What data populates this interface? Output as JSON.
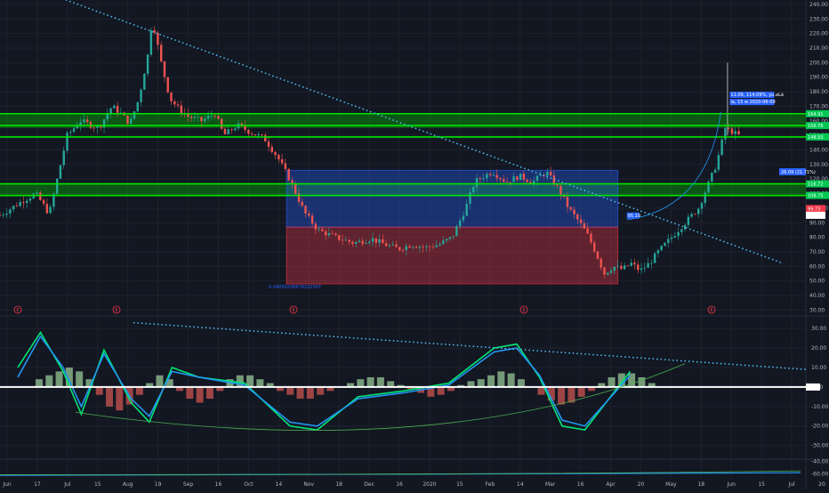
{
  "chart_data": [
    {
      "type": "candlestick",
      "panel": "price",
      "x_ticks": [
        "Jun",
        "17",
        "Jul",
        "15",
        "Aug",
        "19",
        "Sep",
        "16",
        "Oct",
        "14",
        "Nov",
        "18",
        "Dec",
        "16",
        "2020",
        "15",
        "Feb",
        "14",
        "Mar",
        "16",
        "Apr",
        "20",
        "May",
        "18",
        "Jun",
        "15",
        "Jul",
        "20"
      ],
      "y_ticks": [
        240,
        230,
        220,
        210,
        200,
        190,
        180,
        170,
        160,
        150,
        140,
        130,
        120,
        110,
        100,
        90,
        80,
        70,
        60,
        50,
        40,
        30
      ],
      "ylim": [
        26,
        243
      ],
      "close_path": [
        [
          0,
          95
        ],
        [
          5,
          105
        ],
        [
          8,
          110
        ],
        [
          11,
          96
        ],
        [
          15,
          150
        ],
        [
          18,
          160
        ],
        [
          22,
          155
        ],
        [
          25,
          170
        ],
        [
          27,
          165
        ],
        [
          29,
          158
        ],
        [
          31,
          175
        ],
        [
          33,
          205
        ],
        [
          34,
          230
        ],
        [
          36,
          200
        ],
        [
          38,
          175
        ],
        [
          40,
          168
        ],
        [
          42,
          163
        ],
        [
          45,
          160
        ],
        [
          48,
          165
        ],
        [
          50,
          150
        ],
        [
          53,
          157
        ],
        [
          56,
          152
        ],
        [
          59,
          148
        ],
        [
          62,
          135
        ],
        [
          65,
          118
        ],
        [
          68,
          97
        ],
        [
          71,
          85
        ],
        [
          75,
          80
        ],
        [
          79,
          76
        ],
        [
          83,
          79
        ],
        [
          86,
          75
        ],
        [
          89,
          72
        ],
        [
          92,
          75
        ],
        [
          95,
          73
        ],
        [
          98,
          75
        ],
        [
          101,
          80
        ],
        [
          104,
          100
        ],
        [
          106,
          118
        ],
        [
          108,
          122
        ],
        [
          110,
          125
        ],
        [
          113,
          118
        ],
        [
          116,
          122
        ],
        [
          119,
          118
        ],
        [
          122,
          125
        ],
        [
          125,
          112
        ],
        [
          127,
          100
        ],
        [
          129,
          92
        ],
        [
          131,
          83
        ],
        [
          133,
          70
        ],
        [
          135,
          55
        ],
        [
          137,
          60
        ],
        [
          139,
          58
        ],
        [
          141,
          62
        ],
        [
          143,
          57
        ],
        [
          145,
          62
        ],
        [
          147,
          70
        ],
        [
          150,
          80
        ],
        [
          153,
          90
        ],
        [
          156,
          100
        ],
        [
          158,
          115
        ],
        [
          160,
          130
        ],
        [
          162,
          155
        ],
        [
          165,
          150
        ]
      ],
      "horizontal_levels": [
        {
          "value": 164.91,
          "label": "164.91"
        },
        {
          "value": 156.76,
          "label": "156.76"
        },
        {
          "value": 148.93,
          "label": "148.93"
        },
        {
          "value": 116.72,
          "label": "116.72"
        },
        {
          "value": 108.75,
          "label": "108.75"
        }
      ],
      "zones": [
        {
          "color": "#00c800",
          "from": 155,
          "to": 165
        },
        {
          "color": "#00c800",
          "from": 108,
          "to": 117
        }
      ],
      "range_boxes": [
        {
          "color": "#2962ff",
          "from": 87,
          "to": 126
        },
        {
          "color": "#f23645",
          "from": 48,
          "to": 87
        }
      ],
      "box_label": "0.04050236678222307",
      "price_tags": [
        {
          "text": "99.73",
          "color": "#f23645"
        },
        {
          "text": "95.13",
          "color": "#ffffff"
        },
        {
          "text": "26.09 (21.71%)",
          "color": "#2962ff"
        }
      ],
      "notes": [
        {
          "text": "95.19",
          "color": "#2962ff"
        },
        {
          "text": "11.09, 114.09%, yu.aLá",
          "color": "#2962ff"
        },
        {
          "text": "ía, 15 w 2020-06-09",
          "color": "#2962ff"
        }
      ],
      "event_markers": [
        "E",
        "E",
        "E",
        "E",
        "E"
      ],
      "trendlines": [
        {
          "style": "dotted",
          "color": "#4fc3f7",
          "from": [
            13,
            245
          ],
          "to": [
            175,
            62
          ]
        }
      ]
    },
    {
      "type": "oscillator",
      "panel": "macd",
      "y_ticks": [
        30,
        20,
        10,
        0,
        -10,
        -20,
        -30
      ],
      "zero_tag": "0.95",
      "ylim": [
        -37,
        36
      ],
      "series": [
        {
          "color": "#00e676",
          "values": [
            [
              0,
              10
            ],
            [
              5,
              28
            ],
            [
              10,
              8
            ],
            [
              14,
              -14
            ],
            [
              19,
              19
            ],
            [
              25,
              -8
            ],
            [
              29,
              -18
            ],
            [
              34,
              10
            ],
            [
              40,
              5
            ],
            [
              50,
              2
            ],
            [
              60,
              -20
            ],
            [
              66,
              -22
            ],
            [
              75,
              -5
            ],
            [
              85,
              -2
            ],
            [
              95,
              2
            ],
            [
              105,
              20
            ],
            [
              110,
              22
            ],
            [
              115,
              5
            ],
            [
              120,
              -20
            ],
            [
              125,
              -22
            ],
            [
              135,
              8
            ]
          ]
        },
        {
          "color": "#2196f3",
          "values": [
            [
              0,
              5
            ],
            [
              5,
              26
            ],
            [
              10,
              10
            ],
            [
              14,
              -10
            ],
            [
              19,
              17
            ],
            [
              25,
              -6
            ],
            [
              29,
              -15
            ],
            [
              34,
              8
            ],
            [
              40,
              5
            ],
            [
              50,
              1
            ],
            [
              60,
              -18
            ],
            [
              66,
              -20
            ],
            [
              75,
              -6
            ],
            [
              85,
              -3
            ],
            [
              95,
              1
            ],
            [
              105,
              18
            ],
            [
              110,
              20
            ],
            [
              115,
              6
            ],
            [
              120,
              -17
            ],
            [
              125,
              -20
            ],
            [
              135,
              6
            ]
          ]
        }
      ],
      "histogram": [
        4,
        6,
        8,
        10,
        8,
        4,
        -4,
        -10,
        -12,
        -9,
        -4,
        2,
        6,
        4,
        -2,
        -6,
        -8,
        -6,
        -2,
        4,
        6,
        6,
        4,
        2,
        -2,
        -4,
        -6,
        -6,
        -4,
        -2,
        0,
        2,
        4,
        5,
        5,
        3,
        1,
        -1,
        -3,
        -5,
        -4,
        -2,
        1,
        3,
        4,
        6,
        8,
        7,
        4,
        0,
        -4,
        -7,
        -9,
        -8,
        -5,
        -2,
        2,
        5,
        7,
        7,
        5,
        2
      ],
      "trendlines": [
        {
          "style": "dotted",
          "color": "#4fc3f7",
          "from": [
            30,
            35
          ],
          "to": [
            170,
            8
          ]
        },
        {
          "style": "solid",
          "color": "#4caf50",
          "from": [
            15,
            -13
          ],
          "to": [
            160,
            10
          ]
        }
      ]
    },
    {
      "type": "line",
      "panel": "indicator",
      "y_ticks": [
        -40,
        -60
      ],
      "ylim": [
        -66,
        -38
      ]
    }
  ]
}
